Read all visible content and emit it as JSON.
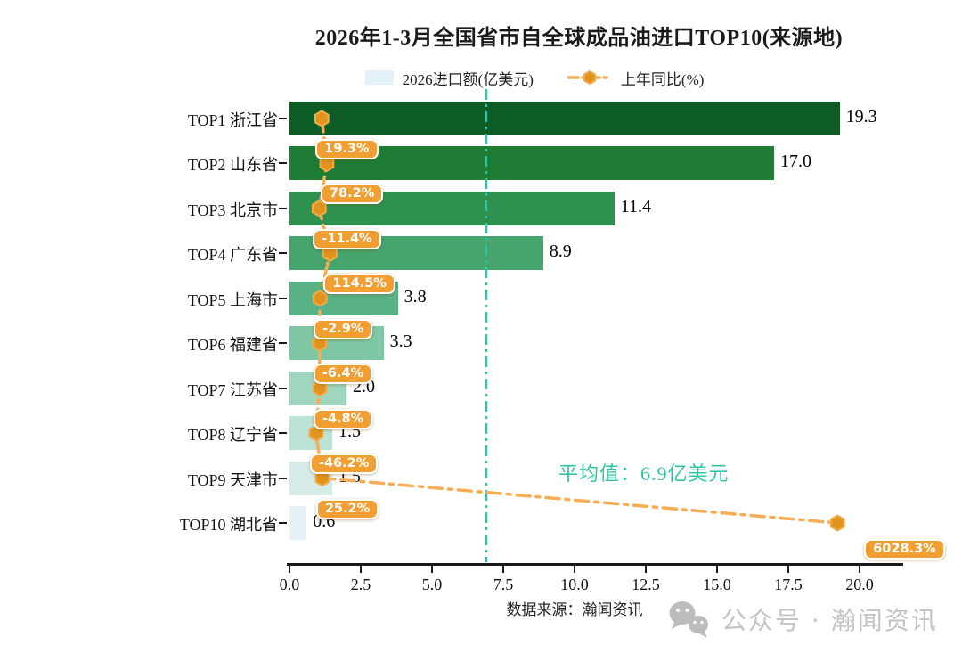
{
  "colors": {
    "orange_box": "#f19e33",
    "orange_marker_fill": "#e1931e",
    "orange_marker_edge": "#f3ab4a",
    "orange_line": "#f6ad55",
    "teal": "#2fc4a4",
    "axis": "#1a1a1a",
    "legend_bar_swatch": "#e3f2f9",
    "watermark_gray": "#bcbcbc"
  },
  "chart_data": {
    "type": "bar",
    "orientation": "horizontal",
    "title": "2026年1-3月全国省市自全球成品油进口TOP10(来源地)",
    "categories": [
      "TOP1 浙江省",
      "TOP2 山东省",
      "TOP3 北京市",
      "TOP4 广东省",
      "TOP5 上海市",
      "TOP6 福建省",
      "TOP7 江苏省",
      "TOP8 辽宁省",
      "TOP9 天津市",
      "TOP10 湖北省"
    ],
    "series": [
      {
        "name": "2026进口额(亿美元)",
        "values": [
          19.3,
          17.0,
          11.4,
          8.9,
          3.8,
          3.3,
          2.0,
          1.5,
          1.5,
          0.6
        ]
      },
      {
        "name": "上年同比(%)",
        "values": [
          19.3,
          78.2,
          -11.4,
          114.5,
          -2.9,
          -6.4,
          -4.8,
          -46.2,
          25.2,
          6028.3
        ]
      }
    ],
    "value_labels": [
      "19.3",
      "17.0",
      "11.4",
      "8.9",
      "3.8",
      "3.3",
      "2.0",
      "1.5",
      "1.5",
      "0.6"
    ],
    "pct_labels": [
      "19.3%",
      "78.2%",
      "-11.4%",
      "114.5%",
      "-2.9%",
      "-6.4%",
      "-4.8%",
      "-46.2%",
      "25.2%",
      "6028.3%"
    ],
    "bar_colors": [
      "#0d5c26",
      "#1e7c35",
      "#2f9150",
      "#46a46c",
      "#58b286",
      "#7ec6a4",
      "#a0d5c0",
      "#bce1d6",
      "#d6ebe8",
      "#e6f2f5"
    ],
    "xlim": [
      0,
      20
    ],
    "x_ticks": [
      "0.0",
      "2.5",
      "5.0",
      "7.5",
      "10.0",
      "12.5",
      "15.0",
      "17.5",
      "20.0"
    ],
    "grid": false,
    "legend_position": "top",
    "mean": {
      "value": 6.9,
      "label": "平均值：6.9亿美元"
    }
  },
  "footer": {
    "source": "数据来源：瀚闻资讯",
    "watermark": "公众号 · 瀚闻资讯"
  }
}
